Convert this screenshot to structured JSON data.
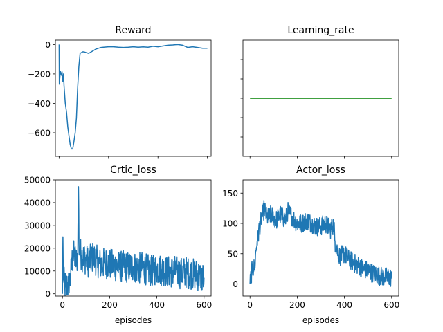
{
  "chart_data": [
    {
      "type": "line",
      "title": "Reward",
      "xlabel": "",
      "xlim": [
        -15,
        615
      ],
      "ylim": [
        -760,
        30
      ],
      "xticks": [
        0,
        200,
        400,
        600
      ],
      "show_x_tick_labels": false,
      "yticks": [
        -600,
        -400,
        -200,
        0
      ],
      "ytick_labels": [
        "−600",
        "−400",
        "−200",
        "0"
      ],
      "color": "#1f77b4",
      "noise": 0,
      "series": [
        {
          "x": [
            0,
            1,
            2,
            3,
            5,
            8,
            10,
            12,
            15,
            18,
            20,
            25,
            30,
            35,
            40,
            45,
            50,
            55,
            60,
            65,
            70,
            75,
            80,
            85,
            90,
            95,
            100,
            110,
            120,
            130,
            140,
            150,
            160,
            170,
            180,
            200,
            220,
            240,
            260,
            280,
            300,
            320,
            340,
            360,
            380,
            400,
            420,
            440,
            460,
            480,
            500,
            520,
            540,
            560,
            580,
            600
          ],
          "y": [
            0,
            -270,
            -160,
            -230,
            -180,
            -200,
            -210,
            -185,
            -250,
            -200,
            -280,
            -400,
            -460,
            -560,
            -620,
            -680,
            -710,
            -710,
            -660,
            -600,
            -500,
            -300,
            -150,
            -60,
            -55,
            -50,
            -50,
            -55,
            -60,
            -50,
            -40,
            -30,
            -25,
            -20,
            -18,
            -15,
            -15,
            -18,
            -20,
            -18,
            -15,
            -18,
            -16,
            -18,
            -12,
            -15,
            -10,
            -5,
            -3,
            0,
            -5,
            -20,
            -15,
            -20,
            -25,
            -25
          ]
        }
      ]
    },
    {
      "type": "line",
      "title": "Learning_rate",
      "xlabel": "",
      "xlim": [
        -30,
        630
      ],
      "ylim": [
        -0.06,
        0.06
      ],
      "xticks": [
        0,
        200,
        400,
        600
      ],
      "show_x_tick_labels": false,
      "yticks": [
        -0.04,
        -0.02,
        0,
        0.02,
        0.04
      ],
      "ytick_labels": [
        "",
        "",
        "",
        "",
        ""
      ],
      "color": "#008000",
      "noise": 0,
      "series": [
        {
          "x": [
            0,
            600
          ],
          "y": [
            0,
            0
          ]
        }
      ]
    },
    {
      "type": "line",
      "title": "Crtic_loss",
      "xlabel": "episodes",
      "xlim": [
        -30,
        630
      ],
      "ylim": [
        -1000,
        50000
      ],
      "xticks": [
        0,
        200,
        400,
        600
      ],
      "show_x_tick_labels": true,
      "yticks": [
        0,
        10000,
        20000,
        30000,
        40000,
        50000
      ],
      "ytick_labels": [
        "0",
        "10000",
        "20000",
        "30000",
        "40000",
        "50000"
      ],
      "color": "#1f77b4",
      "noise": 7000,
      "series": [
        {
          "x": [
            0,
            2,
            4,
            6,
            10,
            15,
            20,
            25,
            30,
            35,
            40,
            45,
            50,
            55,
            60,
            65,
            68,
            70,
            72,
            75,
            80,
            90,
            100,
            110,
            120,
            130,
            140,
            150,
            160,
            180,
            200,
            220,
            240,
            260,
            280,
            300,
            320,
            340,
            360,
            380,
            400,
            420,
            440,
            460,
            480,
            500,
            520,
            540,
            560,
            580,
            590,
            600
          ],
          "y": [
            0,
            25000,
            6000,
            5000,
            4000,
            3000,
            4000,
            3500,
            5000,
            8000,
            14000,
            16000,
            17000,
            15000,
            14000,
            18000,
            47000,
            22000,
            19000,
            18000,
            17000,
            16000,
            15000,
            14000,
            15000,
            16000,
            15000,
            14000,
            13000,
            13500,
            13000,
            12500,
            12000,
            12000,
            11500,
            12000,
            11000,
            11500,
            10500,
            10000,
            11000,
            10500,
            10000,
            9500,
            10000,
            9000,
            9500,
            9000,
            8500,
            8000,
            7000,
            7000
          ]
        }
      ]
    },
    {
      "type": "line",
      "title": "Actor_loss",
      "xlabel": "episodes",
      "xlim": [
        -30,
        630
      ],
      "ylim": [
        -20,
        172
      ],
      "xticks": [
        0,
        200,
        400,
        600
      ],
      "show_x_tick_labels": true,
      "yticks": [
        0,
        50,
        100,
        150
      ],
      "ytick_labels": [
        "0",
        "50",
        "100",
        "150"
      ],
      "color": "#1f77b4",
      "noise": 16,
      "series": [
        {
          "x": [
            0,
            5,
            10,
            15,
            20,
            25,
            30,
            35,
            40,
            45,
            50,
            55,
            60,
            65,
            70,
            80,
            90,
            100,
            110,
            120,
            130,
            140,
            150,
            160,
            170,
            180,
            190,
            200,
            220,
            240,
            260,
            280,
            300,
            320,
            340,
            350,
            355,
            360,
            370,
            380,
            400,
            420,
            440,
            460,
            480,
            500,
            520,
            540,
            560,
            580,
            600
          ],
          "y": [
            0,
            15,
            25,
            25,
            30,
            55,
            70,
            80,
            95,
            100,
            110,
            115,
            125,
            120,
            110,
            110,
            115,
            110,
            105,
            110,
            115,
            110,
            105,
            120,
            115,
            110,
            105,
            100,
            100,
            105,
            100,
            95,
            95,
            100,
            90,
            95,
            100,
            70,
            55,
            45,
            50,
            40,
            35,
            30,
            25,
            22,
            18,
            15,
            12,
            12,
            10
          ]
        }
      ]
    }
  ]
}
